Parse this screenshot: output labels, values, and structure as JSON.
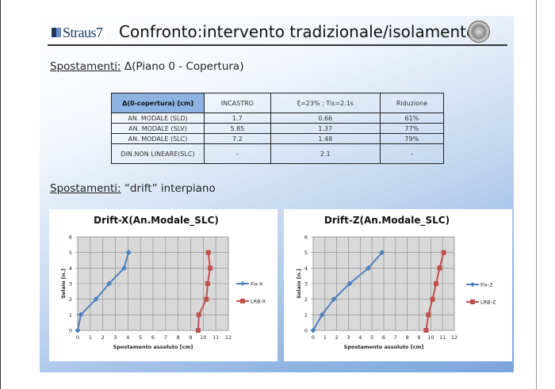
{
  "header": {
    "logo_text": "Straus7",
    "title": "Confronto:intervento tradizionale/isolamento"
  },
  "section1": {
    "label": "Spostamenti:",
    "text": " Δ(Piano 0 - Copertura)"
  },
  "table": {
    "headers": [
      "Δ(0-copertura) [cm]",
      "INCASTRO",
      "ξ=23% ; Tis=2.1s",
      "Riduzione"
    ],
    "rows": [
      [
        "AN. MODALE (SLD)",
        "1.7",
        "0.66",
        "61%"
      ],
      [
        "AN. MODALE (SLV)",
        "5.85",
        "1.37",
        "77%"
      ],
      [
        "AN. MODALE (SLC)",
        "7.2",
        "1.48",
        "79%"
      ],
      [
        "DIN.NON LINEARE(SLC)",
        "-",
        "2.1",
        "-"
      ]
    ]
  },
  "section2": {
    "label": "Spostamenti:",
    "text": " “drift” interpiano"
  },
  "colors": {
    "fix": "#4f81bd",
    "lrb": "#c0504d",
    "plot_bg": "#d9d9d9",
    "table_header": "#8db3e2"
  },
  "chart_data": [
    {
      "type": "line",
      "title": "Drift-X(An.Modale_SLC)",
      "xlabel": "Spostamento assoluto [cm]",
      "ylabel": "Solaio [n.]",
      "xlim": [
        0,
        12
      ],
      "ylim": [
        0,
        6
      ],
      "xticks": [
        "0",
        "1",
        "2",
        "3",
        "4",
        "5",
        "6",
        "7",
        "8",
        "9",
        "10",
        "11",
        "12"
      ],
      "yticks": [
        "0",
        "1",
        "2",
        "3",
        "4",
        "5",
        "6"
      ],
      "grid": true,
      "legend": "right",
      "series": [
        {
          "name": "Fix-X",
          "marker": "diamond",
          "points": [
            [
              0,
              0
            ],
            [
              0.25,
              1
            ],
            [
              1.45,
              2
            ],
            [
              2.5,
              3
            ],
            [
              3.7,
              4
            ],
            [
              4.05,
              5
            ]
          ]
        },
        {
          "name": "LRB-X",
          "marker": "square",
          "points": [
            [
              9.6,
              0
            ],
            [
              9.65,
              1
            ],
            [
              10.25,
              2
            ],
            [
              10.35,
              3
            ],
            [
              10.55,
              4
            ],
            [
              10.4,
              5
            ]
          ]
        }
      ]
    },
    {
      "type": "line",
      "title": "Drift-Z(An.Modale_SLC)",
      "xlabel": "Spostamento assoluto [cm]",
      "ylabel": "Solaio [n.]",
      "xlim": [
        0,
        12
      ],
      "ylim": [
        0,
        6
      ],
      "xticks": [
        "0",
        "1",
        "2",
        "3",
        "4",
        "5",
        "6",
        "7",
        "8",
        "9",
        "10",
        "11",
        "12"
      ],
      "yticks": [
        "0",
        "1",
        "2",
        "3",
        "4",
        "5",
        "6"
      ],
      "grid": true,
      "legend": "right",
      "series": [
        {
          "name": "Fix-Z",
          "marker": "diamond",
          "points": [
            [
              0,
              0
            ],
            [
              0.75,
              1
            ],
            [
              1.75,
              2
            ],
            [
              3.1,
              3
            ],
            [
              4.7,
              4
            ],
            [
              5.85,
              5
            ]
          ]
        },
        {
          "name": "LRB-Z",
          "marker": "square",
          "points": [
            [
              9.6,
              0
            ],
            [
              9.8,
              1
            ],
            [
              10.15,
              2
            ],
            [
              10.45,
              3
            ],
            [
              10.75,
              4
            ],
            [
              11.1,
              5
            ]
          ]
        }
      ]
    }
  ]
}
